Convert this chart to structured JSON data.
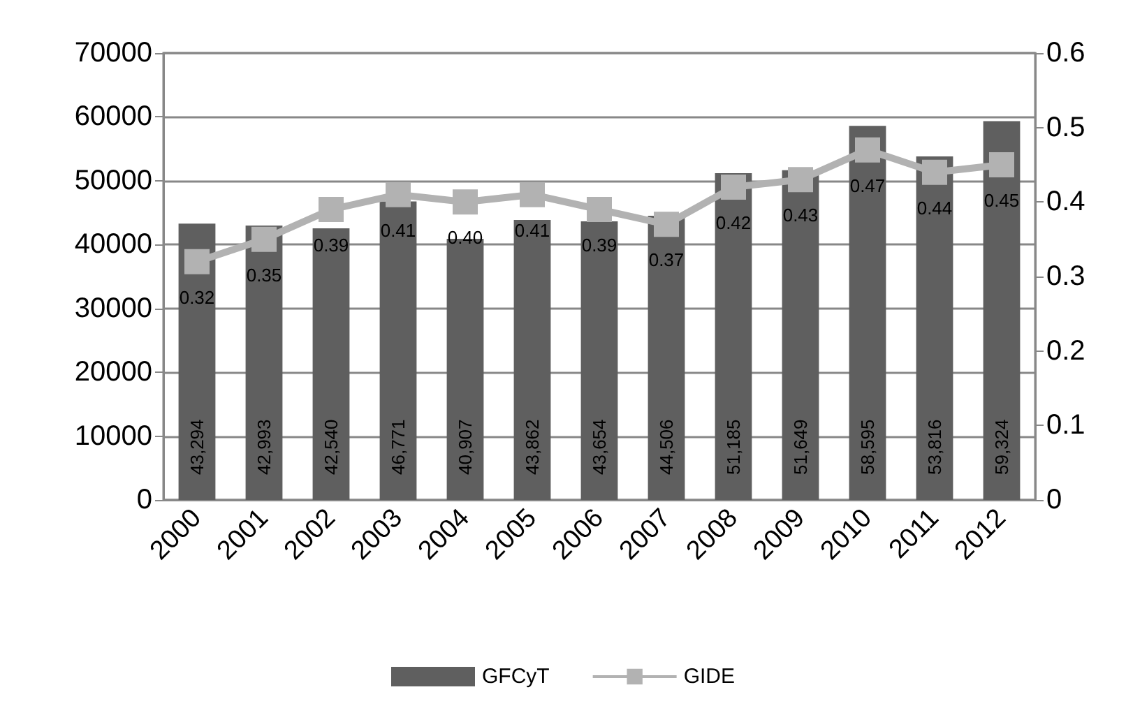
{
  "chart_data": {
    "type": "bar",
    "categories": [
      "2000",
      "2001",
      "2002",
      "2003",
      "2004",
      "2005",
      "2006",
      "2007",
      "2008",
      "2009",
      "2010",
      "2011",
      "2012"
    ],
    "series": [
      {
        "name": "GFCyT",
        "color": "#5f5f5f",
        "values": [
          43294,
          42993,
          42540,
          46771,
          40907,
          43862,
          43654,
          44506,
          51185,
          51649,
          58595,
          53816,
          59324
        ],
        "value_labels": [
          "43,294",
          "42,993",
          "42,540",
          "46,771",
          "40,907",
          "43,862",
          "43,654",
          "44,506",
          "51,185",
          "51,649",
          "58,595",
          "53,816",
          "59,324"
        ]
      },
      {
        "name": "GIDE",
        "type": "line",
        "axis": "y2",
        "color": "#b2b2b2",
        "marker": "square",
        "values": [
          0.32,
          0.35,
          0.39,
          0.41,
          0.4,
          0.41,
          0.39,
          0.37,
          0.42,
          0.43,
          0.47,
          0.44,
          0.45
        ],
        "value_labels": [
          "0.32",
          "0.35",
          "0.39",
          "0.41",
          "0.40",
          "0.41",
          "0.39",
          "0.37",
          "0.42",
          "0.43",
          "0.47",
          "0.44",
          "0.45"
        ]
      }
    ],
    "ylim": [
      0,
      70000
    ],
    "yticks": [
      0,
      10000,
      20000,
      30000,
      40000,
      50000,
      60000,
      70000
    ],
    "y2lim": [
      0,
      0.6
    ],
    "y2ticks": [
      0,
      0.1,
      0.2,
      0.3,
      0.4,
      0.5,
      0.6
    ],
    "grid": "y",
    "legend": "bottom"
  }
}
